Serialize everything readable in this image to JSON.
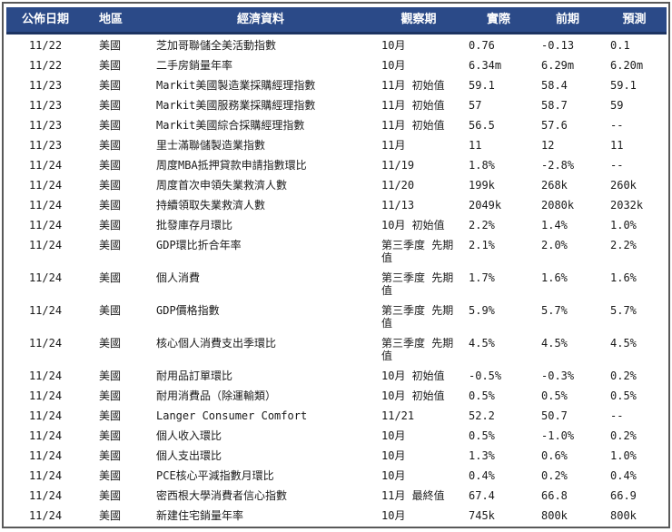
{
  "table": {
    "headers": {
      "date": "公佈日期",
      "region": "地區",
      "indicator": "經濟資料",
      "period": "觀察期",
      "actual": "實際",
      "prior": "前期",
      "forecast": "預測"
    },
    "rows": [
      {
        "date": "11/22",
        "region": "美國",
        "indicator": "芝加哥聯儲全美活動指數",
        "period": "10月",
        "actual": "0.76",
        "prior": "-0.13",
        "forecast": "0.1"
      },
      {
        "date": "11/22",
        "region": "美國",
        "indicator": "二手房銷量年率",
        "period": "10月",
        "actual": "6.34m",
        "prior": "6.29m",
        "forecast": "6.20m"
      },
      {
        "date": "11/23",
        "region": "美國",
        "indicator": "Markit美國製造業採購經理指數",
        "period": "11月 初始值",
        "actual": "59.1",
        "prior": "58.4",
        "forecast": "59.1"
      },
      {
        "date": "11/23",
        "region": "美國",
        "indicator": "Markit美國服務業採購經理指數",
        "period": "11月 初始值",
        "actual": "57",
        "prior": "58.7",
        "forecast": "59"
      },
      {
        "date": "11/23",
        "region": "美國",
        "indicator": "Markit美國綜合採購經理指數",
        "period": "11月 初始值",
        "actual": "56.5",
        "prior": "57.6",
        "forecast": "--"
      },
      {
        "date": "11/23",
        "region": "美國",
        "indicator": "里士滿聯儲製造業指數",
        "period": "11月",
        "actual": "11",
        "prior": "12",
        "forecast": "11"
      },
      {
        "date": "11/24",
        "region": "美國",
        "indicator": "周度MBA抵押貸款申請指數環比",
        "period": "11/19",
        "actual": "1.8%",
        "prior": "-2.8%",
        "forecast": "--"
      },
      {
        "date": "11/24",
        "region": "美國",
        "indicator": "周度首次申領失業救濟人數",
        "period": "11/20",
        "actual": "199k",
        "prior": "268k",
        "forecast": "260k"
      },
      {
        "date": "11/24",
        "region": "美國",
        "indicator": "持續領取失業救濟人數",
        "period": "11/13",
        "actual": "2049k",
        "prior": "2080k",
        "forecast": "2032k"
      },
      {
        "date": "11/24",
        "region": "美國",
        "indicator": "批發庫存月環比",
        "period": "10月 初始值",
        "actual": "2.2%",
        "prior": "1.4%",
        "forecast": "1.0%"
      },
      {
        "date": "11/24",
        "region": "美國",
        "indicator": "GDP環比折合年率",
        "period": "第三季度 先期值",
        "actual": "2.1%",
        "prior": "2.0%",
        "forecast": "2.2%"
      },
      {
        "date": "11/24",
        "region": "美國",
        "indicator": "個人消費",
        "period": "第三季度 先期值",
        "actual": "1.7%",
        "prior": "1.6%",
        "forecast": "1.6%"
      },
      {
        "date": "11/24",
        "region": "美國",
        "indicator": "GDP價格指數",
        "period": "第三季度 先期值",
        "actual": "5.9%",
        "prior": "5.7%",
        "forecast": "5.7%"
      },
      {
        "date": "11/24",
        "region": "美國",
        "indicator": "核心個人消費支出季環比",
        "period": "第三季度 先期值",
        "actual": "4.5%",
        "prior": "4.5%",
        "forecast": "4.5%"
      },
      {
        "date": "11/24",
        "region": "美國",
        "indicator": "耐用品訂單環比",
        "period": "10月 初始值",
        "actual": "-0.5%",
        "prior": "-0.3%",
        "forecast": "0.2%"
      },
      {
        "date": "11/24",
        "region": "美國",
        "indicator": "耐用消費品（除運輸類）",
        "period": "10月 初始值",
        "actual": "0.5%",
        "prior": "0.5%",
        "forecast": "0.5%"
      },
      {
        "date": "11/24",
        "region": "美國",
        "indicator": "Langer Consumer Comfort",
        "period": "11/21",
        "actual": "52.2",
        "prior": "50.7",
        "forecast": "--"
      },
      {
        "date": "11/24",
        "region": "美國",
        "indicator": "個人收入環比",
        "period": "10月",
        "actual": "0.5%",
        "prior": "-1.0%",
        "forecast": "0.2%"
      },
      {
        "date": "11/24",
        "region": "美國",
        "indicator": "個人支出環比",
        "period": "10月",
        "actual": "1.3%",
        "prior": "0.6%",
        "forecast": "1.0%"
      },
      {
        "date": "11/24",
        "region": "美國",
        "indicator": "PCE核心平減指數月環比",
        "period": "10月",
        "actual": "0.4%",
        "prior": "0.2%",
        "forecast": "0.4%"
      },
      {
        "date": "11/24",
        "region": "美國",
        "indicator": "密西根大學消費者信心指數",
        "period": "11月 最終值",
        "actual": "67.4",
        "prior": "66.8",
        "forecast": "66.9"
      },
      {
        "date": "11/24",
        "region": "美國",
        "indicator": "新建住宅銷量年率",
        "period": "10月",
        "actual": "745k",
        "prior": "800k",
        "forecast": "800k"
      }
    ]
  },
  "colors": {
    "header_bg": "#2B4A88",
    "header_border_bottom": "#1D3462",
    "header_text": "#FFFFFF",
    "frame_border": "#595959",
    "body_text": "#1A1A1A",
    "background": "#FFFFFF"
  }
}
